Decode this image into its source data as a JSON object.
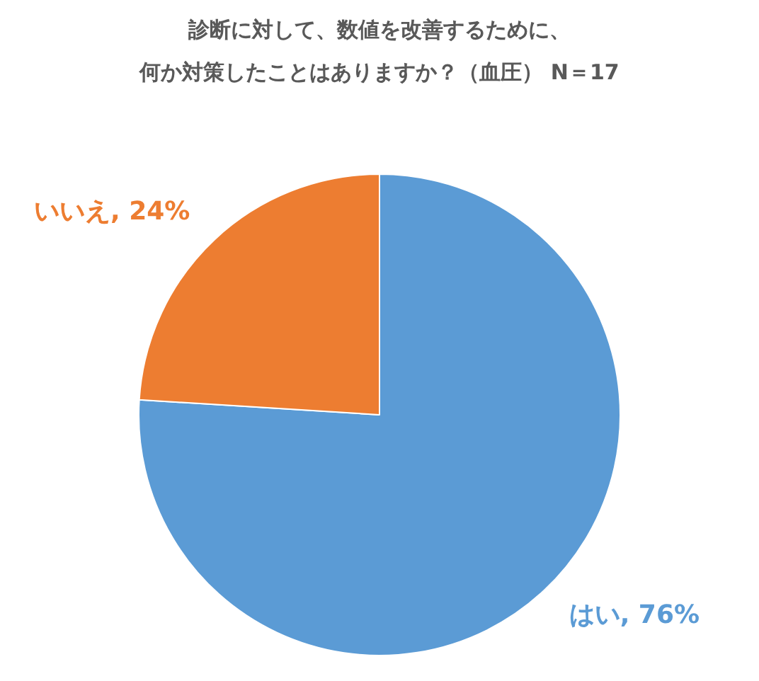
{
  "chart_data": {
    "type": "pie",
    "title": "診断に対して、数値を改善するために、",
    "subtitle": "何か対策したことはありますか？（血圧） N＝17",
    "categories": [
      "はい",
      "いいえ"
    ],
    "values": [
      76,
      24
    ],
    "colors": [
      "#5b9bd5",
      "#ed7d31"
    ],
    "value_labels": [
      "76%",
      "24%"
    ]
  }
}
